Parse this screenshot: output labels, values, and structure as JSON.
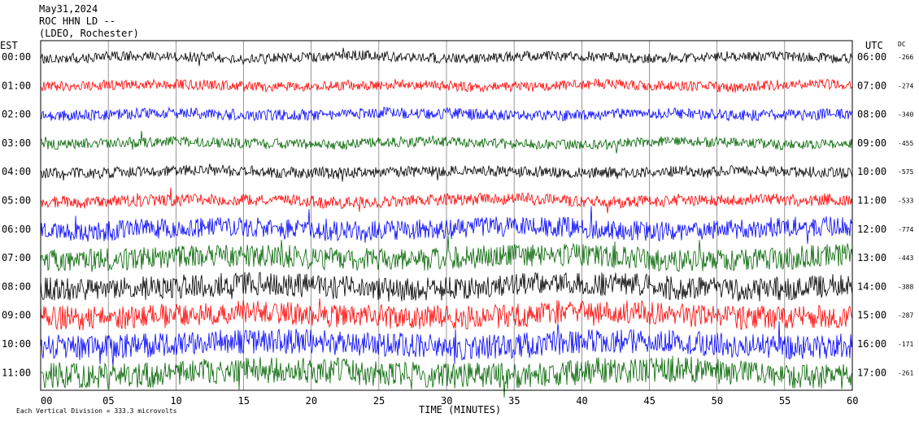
{
  "header": {
    "date": "May31,2024",
    "station": "ROC HHN LD --",
    "network": "(LDEO, Rochester)"
  },
  "chart_data": {
    "type": "line",
    "title": "ROC HHN LD --",
    "left_axis_label": "EST",
    "right_axis_label": "UTC",
    "dc_label": "DC",
    "xlabel": "TIME (MINUTES)",
    "xlim": [
      0,
      60
    ],
    "x_ticks": [
      "00",
      "05",
      "10",
      "15",
      "20",
      "25",
      "30",
      "35",
      "40",
      "45",
      "50",
      "55",
      "60"
    ],
    "footer_note": "Each Vertical Division = 333.3 microvolts",
    "trace_colors": [
      "#000000",
      "#ff0000",
      "#0000ff",
      "#006400"
    ],
    "rows": [
      {
        "est": "00:00",
        "utc": "06:00",
        "dc": "-266",
        "amplitude": 0.55
      },
      {
        "est": "01:00",
        "utc": "07:00",
        "dc": "-274",
        "amplitude": 0.55
      },
      {
        "est": "02:00",
        "utc": "08:00",
        "dc": "-340",
        "amplitude": 0.6
      },
      {
        "est": "03:00",
        "utc": "09:00",
        "dc": "-455",
        "amplitude": 0.55
      },
      {
        "est": "04:00",
        "utc": "10:00",
        "dc": "-575",
        "amplitude": 0.6
      },
      {
        "est": "05:00",
        "utc": "11:00",
        "dc": "-533",
        "amplitude": 0.65
      },
      {
        "est": "06:00",
        "utc": "12:00",
        "dc": "-774",
        "amplitude": 1.1
      },
      {
        "est": "07:00",
        "utc": "13:00",
        "dc": "-443",
        "amplitude": 1.25
      },
      {
        "est": "08:00",
        "utc": "14:00",
        "dc": "-388",
        "amplitude": 1.3
      },
      {
        "est": "09:00",
        "utc": "15:00",
        "dc": "-287",
        "amplitude": 1.3
      },
      {
        "est": "10:00",
        "utc": "16:00",
        "dc": "-171",
        "amplitude": 1.35
      },
      {
        "est": "11:00",
        "utc": "17:00",
        "dc": "-261",
        "amplitude": 1.45
      }
    ]
  }
}
